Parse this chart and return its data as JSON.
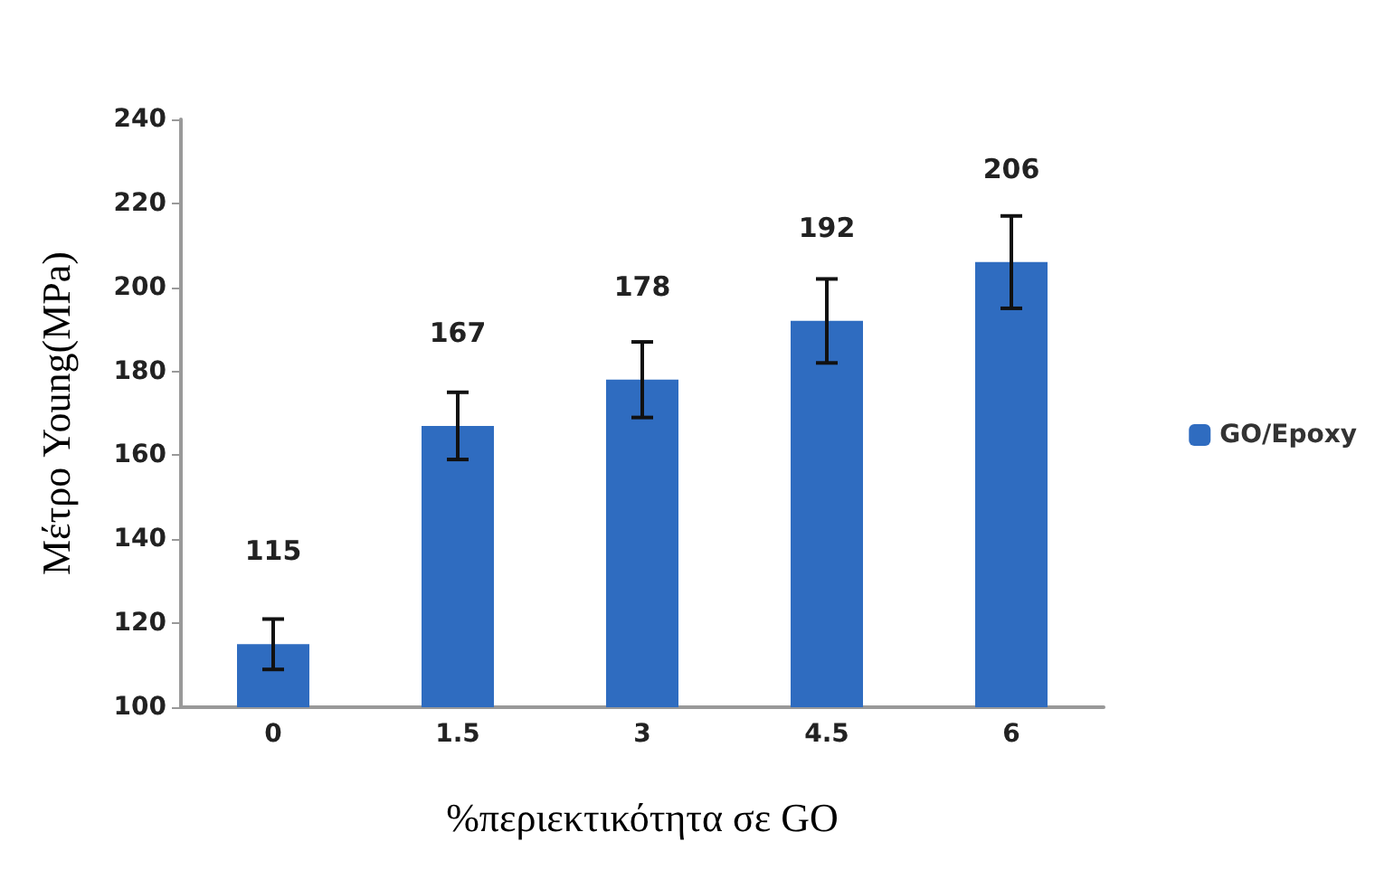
{
  "chart_data": {
    "type": "bar",
    "xlabel": "%περιεκτικότητα σε GO",
    "ylabel": "Μέτρο Young(MPa)",
    "categories": [
      "0",
      "1.5",
      "3",
      "4.5",
      "6"
    ],
    "series": [
      {
        "name": "GO/Epoxy",
        "color": "#2f6cc0",
        "values": [
          115,
          167,
          178,
          192,
          206
        ],
        "errors": [
          6,
          8,
          9,
          10,
          11
        ]
      }
    ],
    "ylim": [
      100,
      240
    ],
    "yticks": [
      100,
      120,
      140,
      160,
      180,
      200,
      220,
      240
    ],
    "grid": false,
    "legend": "right",
    "data_labels": true
  }
}
